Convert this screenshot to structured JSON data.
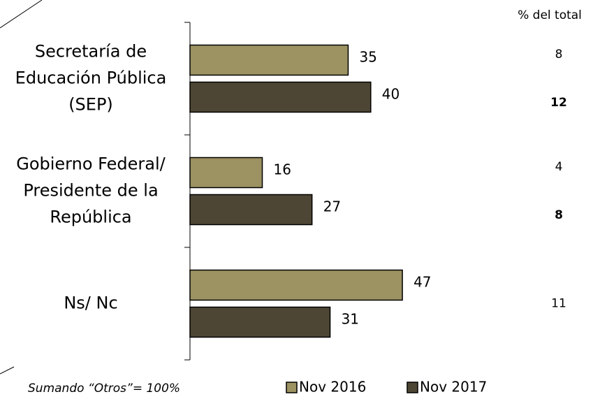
{
  "chart_data": {
    "type": "bar",
    "orientation": "horizontal",
    "categories": [
      "Secretaría de\nEducación Pública\n(SEP)",
      "Gobierno Federal/\nPresidente de la\nRepública",
      "Ns/ Nc"
    ],
    "series": [
      {
        "name": "Nov 2016",
        "color": "#9c9262",
        "values": [
          35,
          16,
          47
        ]
      },
      {
        "name": "Nov 2017",
        "color": "#4e4635",
        "values": [
          40,
          27,
          31
        ]
      }
    ],
    "xlim": [
      0,
      80
    ],
    "share_of_total": {
      "label": "% del total",
      "rows": [
        [
          8,
          12
        ],
        [
          4,
          8
        ],
        [
          11
        ]
      ],
      "bold": [
        [
          false,
          true
        ],
        [
          false,
          true
        ],
        [
          false
        ]
      ]
    },
    "note": "Sumando “Otros”= 100%"
  }
}
